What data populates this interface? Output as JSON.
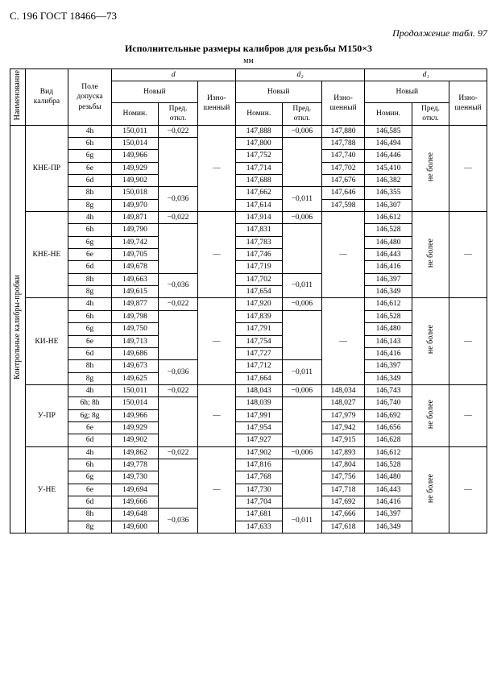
{
  "header": {
    "page": "С. 196 ГОСТ 18466—73",
    "cont": "Продолжение табл. 97"
  },
  "title": "Исполнительные размеры калибров для резьбы М150×3",
  "unit": "мм",
  "cols": {
    "naimen": "Наименование",
    "vid": "Вид калибра",
    "pole": "Поле допуска резьбы",
    "d": "d",
    "d2": "d₂",
    "d1": "d₁",
    "novyj": "Новый",
    "izno": "Изно-\nшенный",
    "nomin": "Номин.",
    "pred": "Пред.\nоткл."
  },
  "side_group": "Контрольные калибры-пробки",
  "ne_bolee": "не более",
  "groups": [
    {
      "vid": "КНЕ-ПР",
      "rows": [
        {
          "pole": "4h",
          "d_n": "150,011",
          "d_p": "−0,022",
          "d_i": "",
          "d2_n": "147,888",
          "d2_p": "−0,006",
          "d2_i": "147,880",
          "d1_n": "146,585"
        },
        {
          "pole": "6h",
          "d_n": "150,014",
          "d_p": "",
          "d_i": "",
          "d2_n": "147,800",
          "d2_p": "",
          "d2_i": "147,788",
          "d1_n": "146,494"
        },
        {
          "pole": "6g",
          "d_n": "149,966",
          "d_p": "−0,028",
          "d_i": "",
          "d2_n": "147,752",
          "d2_p": "−0,008",
          "d2_i": "147,740",
          "d1_n": "146,446"
        },
        {
          "pole": "6e",
          "d_n": "149,929",
          "d_p": "",
          "d_i": "",
          "d2_n": "147,714",
          "d2_p": "",
          "d2_i": "147,702",
          "d1_n": "145,410"
        },
        {
          "pole": "6d",
          "d_n": "149,902",
          "d_p": "",
          "d_i": "",
          "d2_n": "147,688",
          "d2_p": "",
          "d2_i": "147,676",
          "d1_n": "146,382"
        },
        {
          "pole": "8h",
          "d_n": "150,018",
          "d_p": "−0,036",
          "d_i": "",
          "d2_n": "147,662",
          "d2_p": "−0,011",
          "d2_i": "147,646",
          "d1_n": "146,355"
        },
        {
          "pole": "8g",
          "d_n": "149,970",
          "d_p": "",
          "d_i": "",
          "d2_n": "147,614",
          "d2_p": "",
          "d2_i": "147,598",
          "d1_n": "146,307"
        }
      ],
      "d_p_spans": [
        [
          0,
          1
        ],
        [
          1,
          4
        ],
        [
          5,
          2
        ]
      ],
      "d2_p_spans": [
        [
          0,
          1
        ],
        [
          1,
          4
        ],
        [
          5,
          2
        ]
      ],
      "d_i": "—",
      "d2_i_blank": false,
      "d1_p": "",
      "d1_i": "—"
    },
    {
      "vid": "КНЕ-НЕ",
      "rows": [
        {
          "pole": "4h",
          "d_n": "149,871",
          "d_p": "−0,022",
          "d2_n": "147,914",
          "d2_p": "−0,006",
          "d1_n": "146,612"
        },
        {
          "pole": "6h",
          "d_n": "149,790",
          "d_p": "",
          "d2_n": "147,831",
          "d2_p": "",
          "d1_n": "146,528"
        },
        {
          "pole": "6g",
          "d_n": "149,742",
          "d_p": "−0,028",
          "d2_n": "147,783",
          "d2_p": "−0,008",
          "d1_n": "146,480"
        },
        {
          "pole": "6e",
          "d_n": "149,705",
          "d_p": "",
          "d2_n": "147,746",
          "d2_p": "",
          "d1_n": "146,443"
        },
        {
          "pole": "6d",
          "d_n": "149,678",
          "d_p": "",
          "d2_n": "147,719",
          "d2_p": "",
          "d1_n": "146,416"
        },
        {
          "pole": "8h",
          "d_n": "149,663",
          "d_p": "−0,036",
          "d2_n": "147,702",
          "d2_p": "−0,011",
          "d1_n": "146,397"
        },
        {
          "pole": "8g",
          "d_n": "149,615",
          "d_p": "",
          "d2_n": "147,654",
          "d2_p": "",
          "d1_n": "146,349"
        }
      ],
      "d_p_spans": [
        [
          0,
          1
        ],
        [
          1,
          4
        ],
        [
          5,
          2
        ]
      ],
      "d2_p_spans": [
        [
          0,
          1
        ],
        [
          1,
          4
        ],
        [
          5,
          2
        ]
      ],
      "d_i": "—",
      "d2_i": "—",
      "d1_p": "",
      "d1_i": "—"
    },
    {
      "vid": "КИ-НЕ",
      "rows": [
        {
          "pole": "4h",
          "d_n": "149,877",
          "d_p": "−0,022",
          "d2_n": "147,920",
          "d2_p": "−0,006",
          "d1_n": "146,612"
        },
        {
          "pole": "6h",
          "d_n": "149,798",
          "d_p": "",
          "d2_n": "147,839",
          "d2_p": "",
          "d1_n": "146,528"
        },
        {
          "pole": "6g",
          "d_n": "149,750",
          "d_p": "−0,028",
          "d2_n": "147,791",
          "d2_p": "−0,008",
          "d1_n": "146,480"
        },
        {
          "pole": "6e",
          "d_n": "149,713",
          "d_p": "",
          "d2_n": "147,754",
          "d2_p": "",
          "d1_n": "146,143"
        },
        {
          "pole": "6d",
          "d_n": "149,686",
          "d_p": "",
          "d2_n": "147,727",
          "d2_p": "",
          "d1_n": "146,416"
        },
        {
          "pole": "8h",
          "d_n": "149,673",
          "d_p": "−0,036",
          "d2_n": "147,712",
          "d2_p": "−0,011",
          "d1_n": "146,397"
        },
        {
          "pole": "8g",
          "d_n": "149,625",
          "d_p": "",
          "d2_n": "147,664",
          "d2_p": "",
          "d1_n": "146,349"
        }
      ],
      "d_p_spans": [
        [
          0,
          1
        ],
        [
          1,
          4
        ],
        [
          5,
          2
        ]
      ],
      "d2_p_spans": [
        [
          0,
          1
        ],
        [
          1,
          4
        ],
        [
          5,
          2
        ]
      ],
      "d_i": "—",
      "d2_i": "—",
      "d1_p": "",
      "d1_i": "—"
    },
    {
      "vid": "У-ПР",
      "rows": [
        {
          "pole": "4h",
          "d_n": "150,011",
          "d_p": "−0,022",
          "d2_n": "148,043",
          "d2_p": "−0,006",
          "d2_i": "148,034",
          "d1_n": "146,743"
        },
        {
          "pole": "6h; 8h",
          "d_n": "150,014",
          "d_p": "",
          "d2_n": "148,039",
          "d2_p": "",
          "d2_i": "148,027",
          "d1_n": "146,740"
        },
        {
          "pole": "6g; 8g",
          "d_n": "149,966",
          "d_p": "−0,028",
          "d2_n": "147,991",
          "d2_p": "−0,008",
          "d2_i": "147,979",
          "d1_n": "146,692"
        },
        {
          "pole": "6e",
          "d_n": "149,929",
          "d_p": "",
          "d2_n": "147,954",
          "d2_p": "",
          "d2_i": "147,942",
          "d1_n": "146,656"
        },
        {
          "pole": "6d",
          "d_n": "149,902",
          "d_p": "",
          "d2_n": "147,927",
          "d2_p": "",
          "d2_i": "147,915",
          "d1_n": "146,628"
        }
      ],
      "d_p_spans": [
        [
          0,
          1
        ],
        [
          1,
          4
        ]
      ],
      "d2_p_spans": [
        [
          0,
          1
        ],
        [
          1,
          4
        ]
      ],
      "d_i": "—",
      "d1_p": "",
      "d1_i": "—"
    },
    {
      "vid": "У-НЕ",
      "rows": [
        {
          "pole": "4h",
          "d_n": "149,862",
          "d_p": "−0,022",
          "d2_n": "147,902",
          "d2_p": "−0,006",
          "d2_i": "147,893",
          "d1_n": "146,612"
        },
        {
          "pole": "6h",
          "d_n": "149,778",
          "d_p": "",
          "d2_n": "147,816",
          "d2_p": "",
          "d2_i": "147,804",
          "d1_n": "146,528"
        },
        {
          "pole": "6g",
          "d_n": "149,730",
          "d_p": "−0,028",
          "d2_n": "147,768",
          "d2_p": "−0,008",
          "d2_i": "147,756",
          "d1_n": "146,480"
        },
        {
          "pole": "6e",
          "d_n": "149,694",
          "d_p": "",
          "d2_n": "147,730",
          "d2_p": "",
          "d2_i": "147,718",
          "d1_n": "146,443"
        },
        {
          "pole": "6d",
          "d_n": "149,666",
          "d_p": "",
          "d2_n": "147,704",
          "d2_p": "",
          "d2_i": "147,692",
          "d1_n": "146,416"
        },
        {
          "pole": "8h",
          "d_n": "149,648",
          "d_p": "−0,036",
          "d2_n": "147,681",
          "d2_p": "−0,011",
          "d2_i": "147,666",
          "d1_n": "146,397"
        },
        {
          "pole": "8g",
          "d_n": "149,600",
          "d_p": "",
          "d2_n": "147,633",
          "d2_p": "",
          "d2_i": "147,618",
          "d1_n": "146,349"
        }
      ],
      "d_p_spans": [
        [
          0,
          1
        ],
        [
          1,
          4
        ],
        [
          5,
          2
        ]
      ],
      "d2_p_spans": [
        [
          0,
          1
        ],
        [
          1,
          4
        ],
        [
          5,
          2
        ]
      ],
      "d_i": "—",
      "d1_p": "",
      "d1_i": "—"
    }
  ]
}
